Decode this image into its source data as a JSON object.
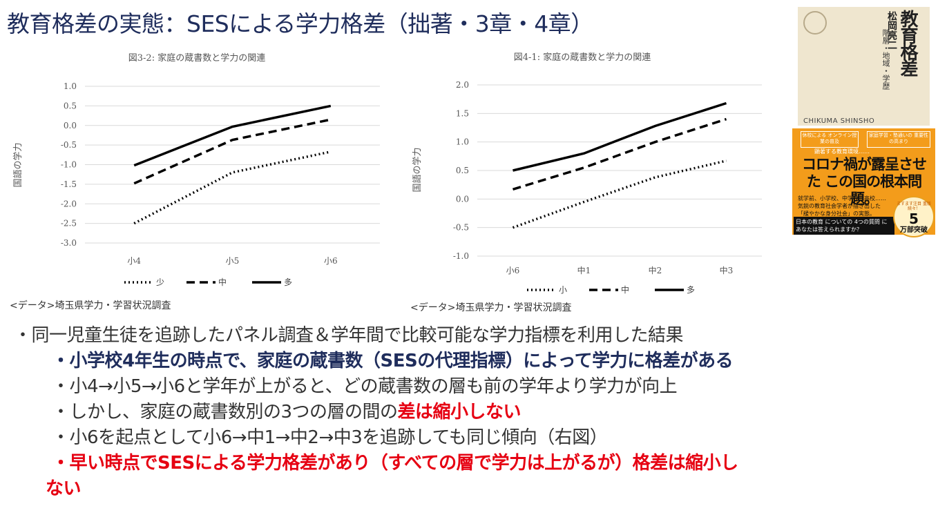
{
  "slide": {
    "title": "教育格差の実態：SESによる学力格差（拙著・3章・4章）"
  },
  "charts": {
    "left": {
      "source": "<データ>埼玉県学力・学習状況調査"
    },
    "right": {
      "source": "<データ>埼玉県学力・学習状況調査"
    }
  },
  "chart_data": [
    {
      "type": "line",
      "title": "図3-2: 家庭の蔵書数と学力の関連",
      "xlabel": "",
      "ylabel": "国語の学力",
      "categories": [
        "小4",
        "小5",
        "小6"
      ],
      "ylim": [
        -3.0,
        1.0
      ],
      "yticks": [
        1.0,
        0.5,
        0.0,
        -0.5,
        -1.0,
        -1.5,
        -2.0,
        -2.5,
        -3.0
      ],
      "grid": true,
      "legend_position": "bottom",
      "series": [
        {
          "name": "少",
          "style": "dotted",
          "values": [
            -2.5,
            -1.2,
            -0.67
          ]
        },
        {
          "name": "中",
          "style": "dashed",
          "values": [
            -1.48,
            -0.37,
            0.15
          ]
        },
        {
          "name": "多",
          "style": "solid",
          "values": [
            -1.02,
            -0.03,
            0.5
          ]
        }
      ]
    },
    {
      "type": "line",
      "title": "図4-1: 家庭の蔵書数と学力の関連",
      "xlabel": "",
      "ylabel": "国語の学力",
      "categories": [
        "小6",
        "中1",
        "中2",
        "中3"
      ],
      "ylim": [
        -1.0,
        2.0
      ],
      "yticks": [
        2.0,
        1.5,
        1.0,
        0.5,
        0.0,
        -0.5,
        -1.0
      ],
      "grid": true,
      "legend_position": "bottom",
      "series": [
        {
          "name": "小",
          "style": "dotted",
          "values": [
            -0.5,
            -0.05,
            0.38,
            0.67
          ]
        },
        {
          "name": "中",
          "style": "dashed",
          "values": [
            0.17,
            0.55,
            1.0,
            1.4
          ]
        },
        {
          "name": "多",
          "style": "solid",
          "values": [
            0.5,
            0.8,
            1.28,
            1.68
          ]
        }
      ]
    }
  ],
  "book": {
    "author": "松岡亮二",
    "title": "教育格差",
    "subtitle": "階層・地域・学歴",
    "publisher": "CHIKUMA SHINSHO",
    "band_box_left": "休校による オンライン授業の普及",
    "band_box_right": "家庭学習・塾通いの 重要性の高まり",
    "band_sub": "顕著する教育環境……",
    "band_headline": "コロナ禍が露呈させた この国の根本問題。",
    "band_body": "就学前、小学校、中学校、高校…… 気鋭の教育社会学者が描き出した 「緩やかな身分社会」の実態。",
    "band_bottom": "日本の教育 についての 4つの質問 に あなたは答えられますか？",
    "badge_small": "ますます注目 重版続々！",
    "badge_big": "5",
    "badge_sub": "万部突破"
  },
  "bullets": {
    "b1": "・同一児童生徒を追跡したパネル調査＆学年間で比較可能な学力指標を利用した結果",
    "b2": "・小学校4年生の時点で、家庭の蔵書数（SESの代理指標）によって学力に格差がある",
    "b3": "・小4→小5→小6と学年が上がると、どの蔵書数の層も前の学年より学力が向上",
    "b4_pre": "・しかし、家庭の蔵書数別の3つの層の間の",
    "b4_red": "差は縮小しない",
    "b5": "・小6を起点として小6→中1→中2→中3を追跡しても同じ傾向（右図）",
    "b6_line1": "・早い時点でSESによる学力格差があり（すべての層で学力は上がるが）格差は縮小し",
    "b6_line2": "ない"
  },
  "colors": {
    "title": "#1f2d5c",
    "emphasis_navy": "#1f2d5c",
    "emphasis_red": "#e60012",
    "band": "#f39c1b"
  }
}
